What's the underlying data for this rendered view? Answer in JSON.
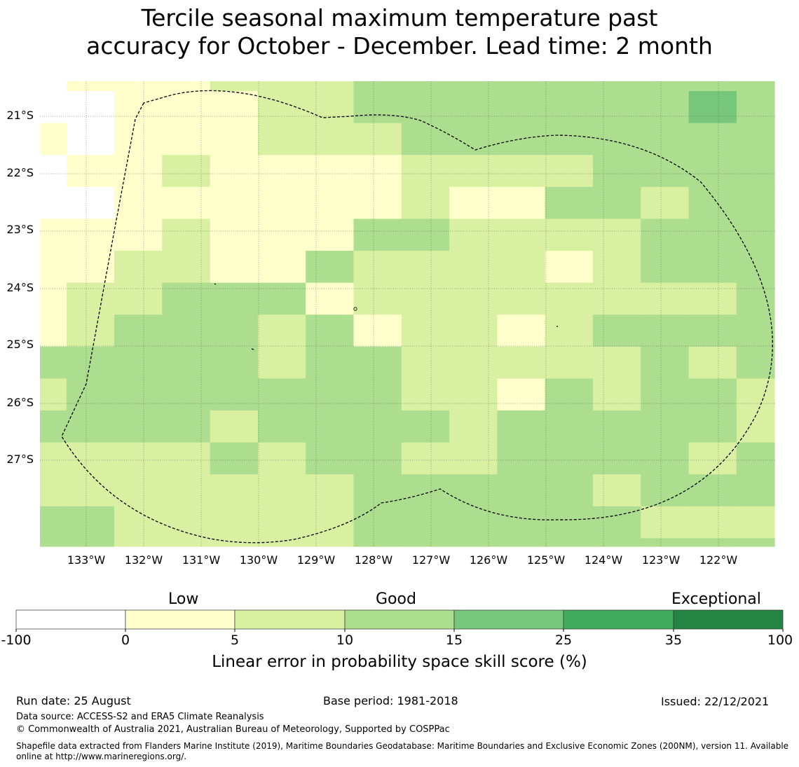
{
  "title": {
    "line1": "Tercile seasonal maximum temperature past",
    "line2": "accuracy for October - December. Lead time: 2 month"
  },
  "map": {
    "lat_labels": [
      "21°S",
      "22°S",
      "23°S",
      "24°S",
      "25°S",
      "26°S",
      "27°S"
    ],
    "lon_labels": [
      "133°W",
      "132°W",
      "131°W",
      "130°W",
      "129°W",
      "128°W",
      "127°W",
      "126°W",
      "125°W",
      "124°W",
      "123°W",
      "122°W"
    ],
    "grid": [
      "0111222333333333",
      "0011122333333343",
      "1011122233333333",
      "0112111122223333",
      "0011111121133233",
      "1112111332222333",
      "1122113222212333",
      "1223331222222223",
      "1233323122123333",
      "3333323322222323",
      "2333333322132332",
      "3333233332333332",
      "2222323322333323",
      "2222222333332333",
      "3322222333333222",
      "3322222333333333"
    ]
  },
  "colorbar": {
    "categories": [
      "Low",
      "Good",
      "Exceptional"
    ],
    "ticks": [
      "-100",
      "0",
      "5",
      "10",
      "15",
      "25",
      "35",
      "100"
    ],
    "colors": [
      "#ffffff",
      "#ffffcc",
      "#d9f0a3",
      "#addd8e",
      "#78c679",
      "#41ab5d",
      "#238443"
    ],
    "label": "Linear error in probability space skill score (%)"
  },
  "footer": {
    "run_date": "Run date: 25 August",
    "base_period": "Base period: 1981-2018",
    "issued": "Issued: 22/12/2021",
    "data_source": "Data source: ACCESS-S2 and ERA5 Climate Reanalysis",
    "copyright": "© Commonwealth of Australia 2021, Australian Bureau of Meteorology, Supported by COSPPac",
    "shapefile_line1": "Shapefile data extracted from Flanders Marine Institute (2019), Maritime Boundaries Geodatabase: Maritime Boundaries and Exclusive Economic Zones (200NM), version 11. Available",
    "shapefile_line2": "online at http://www.marineregions.org/."
  }
}
